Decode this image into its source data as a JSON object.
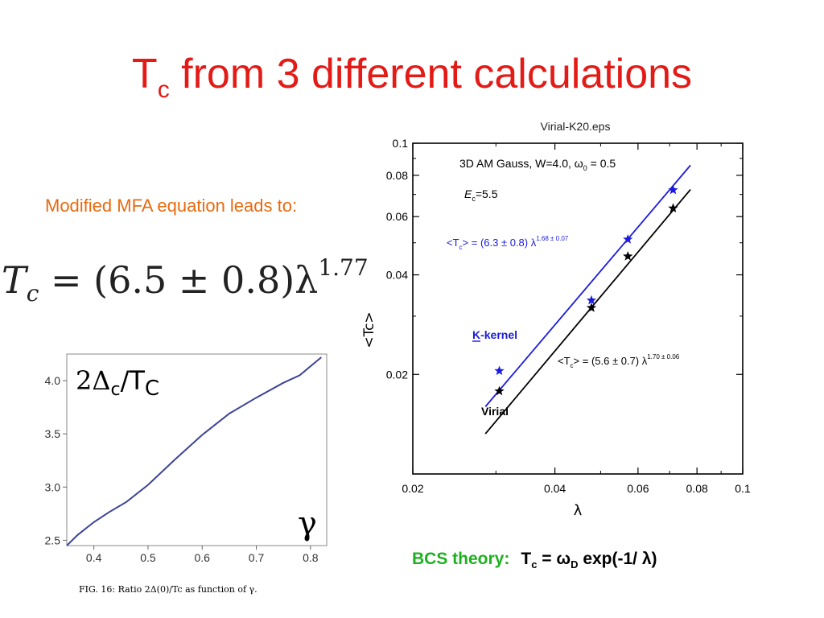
{
  "slide": {
    "title_main": "T",
    "title_sub": "c",
    "title_rest": " from 3 different calculations",
    "mfa_text": "Modified MFA equation leads to:",
    "formula": {
      "lhs": "T",
      "lhs_sub": "c",
      "body": " = (6.5 ± 0.8)λ",
      "exponent": "1.77"
    },
    "bcs_label": "BCS theory:",
    "bcs_eq": {
      "a": "T",
      "a_sub": "c",
      "b": " = ω",
      "b_sub": "D",
      "c": " exp(-1/ λ)"
    }
  },
  "chart_data": [
    {
      "type": "line",
      "title": "Virial-K20.eps",
      "xlabel": "λ",
      "ylabel": "<Tc>",
      "x_scale": "log",
      "y_scale": "log",
      "xlim": [
        0.02,
        0.1
      ],
      "ylim": [
        0.01,
        0.1
      ],
      "x_ticks": [
        0.02,
        0.04,
        0.06,
        0.08,
        0.1
      ],
      "x_tick_labels": [
        "0.02",
        "0.04",
        "0.06",
        "0.08",
        "0.1"
      ],
      "y_ticks": [
        0.02,
        0.04,
        0.06,
        0.08,
        0.1
      ],
      "y_tick_labels": [
        "0.02",
        "0.04",
        "0.06",
        "0.08",
        "0.1"
      ],
      "annotations": {
        "system": "3D AM Gauss, W=4.0, ω",
        "system_sub": "0",
        "system_tail": " = 0.5",
        "ec": "E",
        "ec_sub": "c",
        "ec_tail": "=5.5",
        "kfit": "<T",
        "kfit_sub": "c",
        "kfit_mid": "> = (6.3 ± 0.8) λ",
        "kfit_exp": "1.68 ± 0.07",
        "vfit": "<T",
        "vfit_sub": "c",
        "vfit_mid": "> = (5.6 ± 0.7) λ",
        "vfit_exp": "1.70 ± 0.06"
      },
      "series": [
        {
          "name": "K-kernel",
          "color": "#1a1ae0",
          "marker": "star",
          "points": [
            [
              0.0305,
              0.0205
            ],
            [
              0.0478,
              0.0335
            ],
            [
              0.0571,
              0.0512
            ],
            [
              0.0712,
              0.0722
            ]
          ],
          "fit": {
            "coef": 6.3,
            "exp": 1.68,
            "xrange": [
              0.0285,
              0.0775
            ]
          }
        },
        {
          "name": "Virial",
          "color": "#000000",
          "marker": "star",
          "points": [
            [
              0.0305,
              0.0178
            ],
            [
              0.0478,
              0.0318
            ],
            [
              0.0571,
              0.0455
            ],
            [
              0.0712,
              0.0636
            ]
          ],
          "fit": {
            "coef": 5.6,
            "exp": 1.7,
            "xrange": [
              0.0285,
              0.0775
            ]
          }
        }
      ]
    },
    {
      "type": "line",
      "title": "",
      "inset_label": "2Δ",
      "inset_label_sub": "c",
      "inset_label_tail": "/T",
      "inset_label_sub2": "C",
      "xlabel": "γ",
      "caption": "FIG. 16: Ratio 2Δ(0)/Tc as function of γ.",
      "xlim": [
        0.35,
        0.83
      ],
      "ylim": [
        2.45,
        4.25
      ],
      "x_ticks": [
        0.4,
        0.5,
        0.6,
        0.7,
        0.8
      ],
      "x_tick_labels": [
        "0.4",
        "0.5",
        "0.6",
        "0.7",
        "0.8"
      ],
      "y_ticks": [
        2.5,
        3.0,
        3.5,
        4.0
      ],
      "y_tick_labels": [
        "2.5",
        "3.0",
        "3.5",
        "4.0"
      ],
      "series": [
        {
          "color": "#3d4496",
          "x": [
            0.35,
            0.37,
            0.4,
            0.43,
            0.46,
            0.5,
            0.55,
            0.6,
            0.65,
            0.7,
            0.75,
            0.78,
            0.82
          ],
          "y": [
            2.45,
            2.55,
            2.67,
            2.77,
            2.86,
            3.02,
            3.26,
            3.49,
            3.69,
            3.84,
            3.98,
            4.05,
            4.22
          ]
        }
      ]
    }
  ]
}
